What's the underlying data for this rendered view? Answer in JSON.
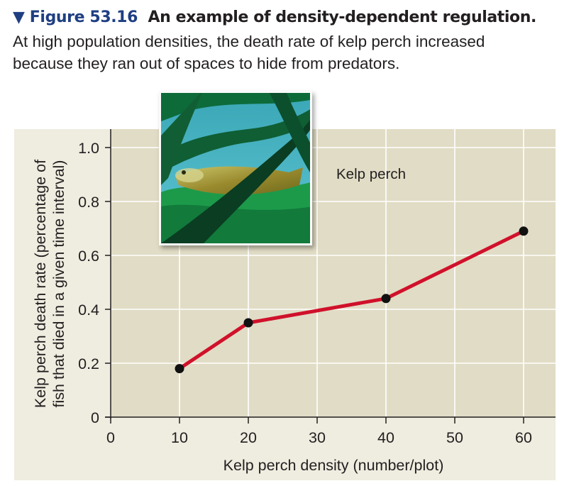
{
  "caption": {
    "marker": "▼",
    "figure_number": "Figure 53.16",
    "title": "An example of density-dependent regulation.",
    "body_line1": "At high population densities, the death rate of kelp perch increased",
    "body_line2": "because they ran out of spaces to hide from predators."
  },
  "photo": {
    "subject": "kelp perch fish among kelp fronds",
    "label": "Kelp perch"
  },
  "colors": {
    "figure_number": "#1f3f82",
    "panel_bg": "#efece0",
    "plot_bg": "#e1dcc5",
    "gridline": "#ffffff",
    "line": "#d0112b",
    "marker": "#111111"
  },
  "chart_data": {
    "type": "line",
    "title": "Kelp perch",
    "xlabel": "Kelp perch density (number/plot)",
    "ylabel_line1": "Kelp perch death rate (percentage of",
    "ylabel_line2": "fish that died in a given time interval)",
    "ylabel": "Kelp perch death rate (percentage of fish that died in a given time interval)",
    "x_ticks": [
      "0",
      "10",
      "20",
      "30",
      "40",
      "50",
      "60"
    ],
    "y_ticks": [
      "0",
      "0.2",
      "0.4",
      "0.6",
      "0.8",
      "1.0"
    ],
    "xlim": [
      0,
      64
    ],
    "ylim": [
      0,
      1.07
    ],
    "grid": true,
    "legend": "none",
    "series": [
      {
        "name": "Kelp perch",
        "x": [
          10,
          20,
          40,
          60
        ],
        "values": [
          0.18,
          0.35,
          0.44,
          0.69
        ]
      }
    ]
  }
}
